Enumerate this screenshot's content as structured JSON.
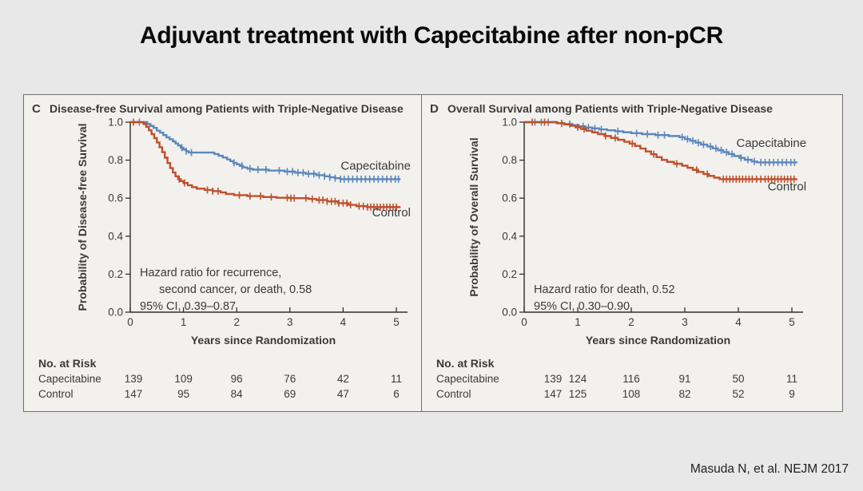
{
  "page": {
    "title": "Adjuvant treatment with Capecitabine after non-pCR",
    "citation": "Masuda N, et al. NEJM 2017",
    "background": "#e8e8e8",
    "panel_background": "#f2f1ee",
    "border_color": "#6f6f6f"
  },
  "colors": {
    "capecitabine": "#5c87bb",
    "control": "#bf4f2b",
    "text": "#3a3a3a",
    "axis": "#2f2f2f"
  },
  "chart_data": [
    {
      "type": "line",
      "panel_letter": "C",
      "title": "Disease-free Survival among Patients with Triple-Negative Disease",
      "xlabel": "Years since Randomization",
      "ylabel": "Probability of Disease-free Survival",
      "xlim": [
        0,
        5.15
      ],
      "ylim": [
        0,
        1
      ],
      "xticks": [
        0,
        1,
        2,
        3,
        4,
        5
      ],
      "ytick_labels": [
        "1.0",
        "0.8",
        "0.6",
        "0.4",
        "0.2",
        "0.0"
      ],
      "grid": false,
      "annotation_lines": [
        "Hazard ratio for recurrence,",
        "      second cancer, or death, 0.58",
        "95% CI, 0.39–0.87"
      ],
      "series": [
        {
          "name": "Capecitabine",
          "color": "#5c87bb",
          "label_x": 5.15,
          "label_y": 0.75,
          "steps": [
            [
              0,
              1
            ],
            [
              0.28,
              1
            ],
            [
              0.32,
              0.99
            ],
            [
              0.38,
              0.98
            ],
            [
              0.44,
              0.97
            ],
            [
              0.5,
              0.955
            ],
            [
              0.56,
              0.945
            ],
            [
              0.62,
              0.932
            ],
            [
              0.68,
              0.92
            ],
            [
              0.74,
              0.91
            ],
            [
              0.8,
              0.899
            ],
            [
              0.85,
              0.888
            ],
            [
              0.9,
              0.877
            ],
            [
              0.95,
              0.866
            ],
            [
              1,
              0.856
            ],
            [
              1.05,
              0.847
            ],
            [
              1.1,
              0.84
            ],
            [
              1.5,
              0.84
            ],
            [
              1.58,
              0.832
            ],
            [
              1.66,
              0.823
            ],
            [
              1.74,
              0.814
            ],
            [
              1.82,
              0.804
            ],
            [
              1.88,
              0.795
            ],
            [
              1.94,
              0.786
            ],
            [
              2,
              0.778
            ],
            [
              2.06,
              0.77
            ],
            [
              2.12,
              0.762
            ],
            [
              2.2,
              0.755
            ],
            [
              2.3,
              0.75
            ],
            [
              2.6,
              0.745
            ],
            [
              2.9,
              0.74
            ],
            [
              3.1,
              0.734
            ],
            [
              3.3,
              0.728
            ],
            [
              3.5,
              0.721
            ],
            [
              3.65,
              0.715
            ],
            [
              3.75,
              0.71
            ],
            [
              3.85,
              0.705
            ],
            [
              3.95,
              0.7
            ],
            [
              5.08,
              0.7
            ]
          ],
          "censors": [
            0.17,
            0.97,
            1.05,
            1.15,
            1.95,
            2.1,
            2.25,
            2.4,
            2.55,
            2.8,
            2.95,
            3.05,
            3.15,
            3.25,
            3.35,
            3.45,
            3.55,
            3.65,
            3.75,
            3.85,
            3.95,
            4.02,
            4.1,
            4.18,
            4.26,
            4.34,
            4.42,
            4.5,
            4.58,
            4.66,
            4.74,
            4.82,
            4.9,
            4.98,
            5.04
          ]
        },
        {
          "name": "Control",
          "color": "#bf4f2b",
          "label_x": 5.15,
          "label_y": 0.505,
          "steps": [
            [
              0,
              1
            ],
            [
              0.2,
              1
            ],
            [
              0.25,
              0.99
            ],
            [
              0.3,
              0.975
            ],
            [
              0.35,
              0.957
            ],
            [
              0.4,
              0.937
            ],
            [
              0.45,
              0.916
            ],
            [
              0.5,
              0.893
            ],
            [
              0.55,
              0.868
            ],
            [
              0.6,
              0.842
            ],
            [
              0.65,
              0.813
            ],
            [
              0.7,
              0.785
            ],
            [
              0.75,
              0.758
            ],
            [
              0.8,
              0.735
            ],
            [
              0.85,
              0.715
            ],
            [
              0.9,
              0.7
            ],
            [
              0.95,
              0.69
            ],
            [
              1,
              0.68
            ],
            [
              1.08,
              0.668
            ],
            [
              1.16,
              0.658
            ],
            [
              1.25,
              0.65
            ],
            [
              1.4,
              0.643
            ],
            [
              1.55,
              0.637
            ],
            [
              1.7,
              0.63
            ],
            [
              1.8,
              0.622
            ],
            [
              1.95,
              0.616
            ],
            [
              2.2,
              0.611
            ],
            [
              2.5,
              0.606
            ],
            [
              2.75,
              0.602
            ],
            [
              3,
              0.6
            ],
            [
              3.35,
              0.596
            ],
            [
              3.5,
              0.59
            ],
            [
              3.7,
              0.583
            ],
            [
              3.9,
              0.574
            ],
            [
              4.1,
              0.565
            ],
            [
              4.25,
              0.558
            ],
            [
              4.45,
              0.553
            ],
            [
              5.08,
              0.553
            ]
          ],
          "censors": [
            0.06,
            0.92,
            1.02,
            1.45,
            1.55,
            1.65,
            2.05,
            2.25,
            2.45,
            2.65,
            2.95,
            3.02,
            3.08,
            3.3,
            3.42,
            3.55,
            3.62,
            3.7,
            3.78,
            3.85,
            3.92,
            4,
            4.07,
            4.14,
            4.3,
            4.38,
            4.46,
            4.52,
            4.58,
            4.64,
            4.7,
            4.76,
            4.82,
            4.88,
            4.94,
            5
          ]
        }
      ],
      "risk_table": {
        "header": "No. at Risk",
        "rows": [
          {
            "name": "Capecitabine",
            "values": [
              "139",
              "109",
              "96",
              "76",
              "42",
              "11"
            ]
          },
          {
            "name": "Control",
            "values": [
              "147",
              "95",
              "84",
              "69",
              "47",
              "6"
            ]
          }
        ]
      }
    },
    {
      "type": "line",
      "panel_letter": "D",
      "title": "Overall Survival among Patients with Triple-Negative Disease",
      "xlabel": "Years since Randomization",
      "ylabel": "Probability of Overall Survival",
      "xlim": [
        0,
        5.15
      ],
      "ylim": [
        0,
        1
      ],
      "xticks": [
        0,
        1,
        2,
        3,
        4,
        5
      ],
      "ytick_labels": [
        "1.0",
        "0.8",
        "0.6",
        "0.4",
        "0.2",
        "0.0"
      ],
      "grid": false,
      "annotation_lines": [
        "Hazard ratio for death, 0.52",
        "95% CI, 0.30–0.90"
      ],
      "series": [
        {
          "name": "Capecitabine",
          "color": "#5c87bb",
          "label_x": 5.15,
          "label_y": 0.87,
          "steps": [
            [
              0,
              1
            ],
            [
              0.5,
              1
            ],
            [
              0.6,
              0.995
            ],
            [
              0.75,
              0.99
            ],
            [
              0.9,
              0.984
            ],
            [
              1.02,
              0.978
            ],
            [
              1.14,
              0.972
            ],
            [
              1.27,
              0.967
            ],
            [
              1.4,
              0.962
            ],
            [
              1.55,
              0.957
            ],
            [
              1.7,
              0.952
            ],
            [
              1.85,
              0.947
            ],
            [
              2,
              0.942
            ],
            [
              2.2,
              0.937
            ],
            [
              2.45,
              0.932
            ],
            [
              2.7,
              0.927
            ],
            [
              2.9,
              0.921
            ],
            [
              3,
              0.911
            ],
            [
              3.1,
              0.902
            ],
            [
              3.2,
              0.892
            ],
            [
              3.3,
              0.882
            ],
            [
              3.42,
              0.872
            ],
            [
              3.52,
              0.862
            ],
            [
              3.62,
              0.852
            ],
            [
              3.72,
              0.842
            ],
            [
              3.82,
              0.832
            ],
            [
              3.92,
              0.822
            ],
            [
              4.02,
              0.812
            ],
            [
              4.12,
              0.802
            ],
            [
              4.25,
              0.793
            ],
            [
              4.35,
              0.788
            ],
            [
              5.1,
              0.788
            ]
          ],
          "censors": [
            0.2,
            0.32,
            0.45,
            0.85,
            1.1,
            1.2,
            1.32,
            1.44,
            1.75,
            2.1,
            2.3,
            2.5,
            2.62,
            2.95,
            3.05,
            3.15,
            3.25,
            3.35,
            3.48,
            3.58,
            3.68,
            3.78,
            3.88,
            4.05,
            4.18,
            4.3,
            4.42,
            4.5,
            4.58,
            4.66,
            4.74,
            4.82,
            4.9,
            4.98,
            5.05
          ]
        },
        {
          "name": "Control",
          "color": "#bf4f2b",
          "label_x": 5.15,
          "label_y": 0.64,
          "steps": [
            [
              0,
              1
            ],
            [
              0.55,
              1
            ],
            [
              0.62,
              0.994
            ],
            [
              0.75,
              0.988
            ],
            [
              0.86,
              0.981
            ],
            [
              0.96,
              0.973
            ],
            [
              1.06,
              0.964
            ],
            [
              1.16,
              0.955
            ],
            [
              1.27,
              0.946
            ],
            [
              1.38,
              0.937
            ],
            [
              1.5,
              0.927
            ],
            [
              1.62,
              0.917
            ],
            [
              1.75,
              0.907
            ],
            [
              1.87,
              0.897
            ],
            [
              1.97,
              0.887
            ],
            [
              2.07,
              0.875
            ],
            [
              2.17,
              0.861
            ],
            [
              2.27,
              0.846
            ],
            [
              2.37,
              0.831
            ],
            [
              2.47,
              0.816
            ],
            [
              2.57,
              0.801
            ],
            [
              2.67,
              0.791
            ],
            [
              2.8,
              0.781
            ],
            [
              2.95,
              0.771
            ],
            [
              3.05,
              0.76
            ],
            [
              3.15,
              0.749
            ],
            [
              3.25,
              0.738
            ],
            [
              3.35,
              0.727
            ],
            [
              3.45,
              0.717
            ],
            [
              3.55,
              0.708
            ],
            [
              3.65,
              0.7
            ],
            [
              5.1,
              0.7
            ]
          ],
          "censors": [
            0.15,
            0.38,
            0.7,
            1,
            1.12,
            1.52,
            1.7,
            2.02,
            2.42,
            2.85,
            3.22,
            3.42,
            3.72,
            3.78,
            3.84,
            3.9,
            3.96,
            4.02,
            4.08,
            4.14,
            4.2,
            4.26,
            4.34,
            4.42,
            4.5,
            4.56,
            4.62,
            4.68,
            4.74,
            4.8,
            4.86,
            4.92,
            4.98,
            5.04
          ]
        }
      ],
      "risk_table": {
        "header": "No. at Risk",
        "rows": [
          {
            "name": "Capecitabine",
            "values": [
              "139",
              "124",
              "116",
              "91",
              "50",
              "11"
            ]
          },
          {
            "name": "Control",
            "values": [
              "147",
              "125",
              "108",
              "82",
              "52",
              "9"
            ]
          }
        ]
      }
    }
  ]
}
